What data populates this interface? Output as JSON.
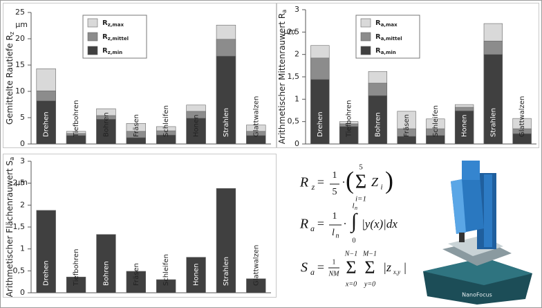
{
  "chart_data": [
    {
      "type": "bar",
      "overlay": true,
      "y_label": "Gemittelte Rautiefe Rz",
      "unit_label": "μm",
      "categories": [
        "Drehen",
        "Tiefbohren",
        "Bohren",
        "Fräsen",
        "Schleifen",
        "Honen",
        "Strahlen",
        "Glattwalzen"
      ],
      "series": [
        {
          "name": "Rz,max",
          "color": "#d9d9d9",
          "values": [
            14.3,
            2.4,
            6.7,
            3.9,
            3.3,
            7.4,
            22.6,
            3.6
          ]
        },
        {
          "name": "Rz,mittel",
          "color": "#8c8c8c",
          "values": [
            10.1,
            2.0,
            5.4,
            2.4,
            2.5,
            6.2,
            19.9,
            2.4
          ]
        },
        {
          "name": "Rz,min",
          "color": "#404040",
          "values": [
            8.2,
            1.6,
            4.7,
            1.2,
            1.7,
            4.9,
            16.7,
            1.6
          ]
        }
      ],
      "ylim": [
        0,
        25
      ],
      "yticks": [
        0,
        5,
        10,
        15,
        20,
        25
      ],
      "legend": "top-left"
    },
    {
      "type": "bar",
      "overlay": true,
      "y_label": "Arithmetischer Mittenrauwert Ra",
      "unit_label": "μm",
      "categories": [
        "Drehen",
        "Tiefbohren",
        "Bohren",
        "Fräsen",
        "Schleifen",
        "Honen",
        "Strahlen",
        "Glattwalzen"
      ],
      "series": [
        {
          "name": "Ra,max",
          "color": "#d9d9d9",
          "values": [
            2.2,
            0.5,
            1.62,
            0.73,
            0.56,
            0.88,
            2.69,
            0.57
          ]
        },
        {
          "name": "Ra,mittel",
          "color": "#8c8c8c",
          "values": [
            1.92,
            0.45,
            1.36,
            0.34,
            0.34,
            0.82,
            2.3,
            0.34
          ]
        },
        {
          "name": "Ra,min",
          "color": "#404040",
          "values": [
            1.44,
            0.39,
            1.08,
            0.17,
            0.19,
            0.74,
            2.0,
            0.23
          ]
        }
      ],
      "ylim": [
        0,
        3
      ],
      "yticks": [
        0,
        {
          "value": 0.5,
          "label": "0,5"
        },
        1,
        {
          "value": 1.5,
          "label": "1,5"
        },
        2,
        {
          "value": 2.5,
          "label": "2,5"
        },
        3
      ],
      "legend": "top-left"
    },
    {
      "type": "bar",
      "y_label": "Arithmetischer Flächenrauwert Sa",
      "unit_label": "μm",
      "categories": [
        "Drehen",
        "Tiefbohren",
        "Bohren",
        "Fräsen",
        "Schleifen",
        "Honen",
        "Strahlen",
        "Glattwalzen"
      ],
      "series": [
        {
          "color": "#404040",
          "values": [
            1.88,
            0.36,
            1.33,
            0.49,
            0.3,
            0.81,
            2.38,
            0.32
          ]
        }
      ],
      "ylim": [
        0,
        3
      ],
      "yticks": [
        0,
        {
          "value": 0.5,
          "label": "0,5"
        },
        1,
        {
          "value": 1.5,
          "label": "1,5"
        },
        2,
        {
          "value": 2.5,
          "label": "2,5"
        },
        3
      ]
    }
  ],
  "formulas": [
    [
      "R",
      "z",
      "=",
      "1",
      "5",
      "·",
      "(",
      "5",
      "Σ",
      "i=1",
      "Z",
      "i",
      ")"
    ],
    [
      "R",
      "a",
      "=",
      "1",
      "l",
      "n",
      "·",
      "l",
      "n",
      "∫",
      "0",
      "|y(x)|dx"
    ],
    [
      "S",
      "a",
      "=",
      "1",
      "NM",
      "N−1",
      "Σ",
      "x=0",
      "M−1",
      "Σ",
      "y=0",
      "|z",
      "x,y",
      "|"
    ]
  ],
  "photo_label": "NanoFocus"
}
